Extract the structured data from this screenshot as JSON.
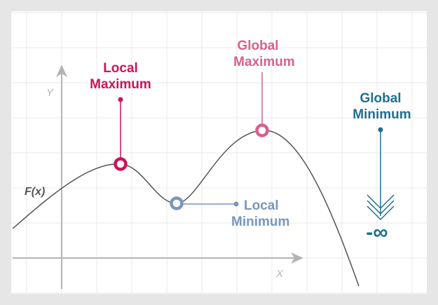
{
  "diagram": {
    "axis_y_label": "Y",
    "axis_x_label": "X",
    "function_label": "F(x)",
    "local_max": {
      "line1": "Local",
      "line2": "Maximum"
    },
    "global_max": {
      "line1": "Global",
      "line2": "Maximum"
    },
    "local_min": {
      "line1": "Local",
      "line2": "Minimum"
    },
    "global_min": {
      "line1": "Global",
      "line2": "Minimum"
    },
    "neg_infinity": "-∞"
  },
  "colors": {
    "background": "#e6e6e6",
    "panel": "#ffffff",
    "grid": "#e9e9e9",
    "axis": "#b4b4b4",
    "curve": "#555555",
    "local_max": "#c8145a",
    "global_max": "#d9608e",
    "local_min": "#7a96bd",
    "global_min": "#1e6f93"
  }
}
